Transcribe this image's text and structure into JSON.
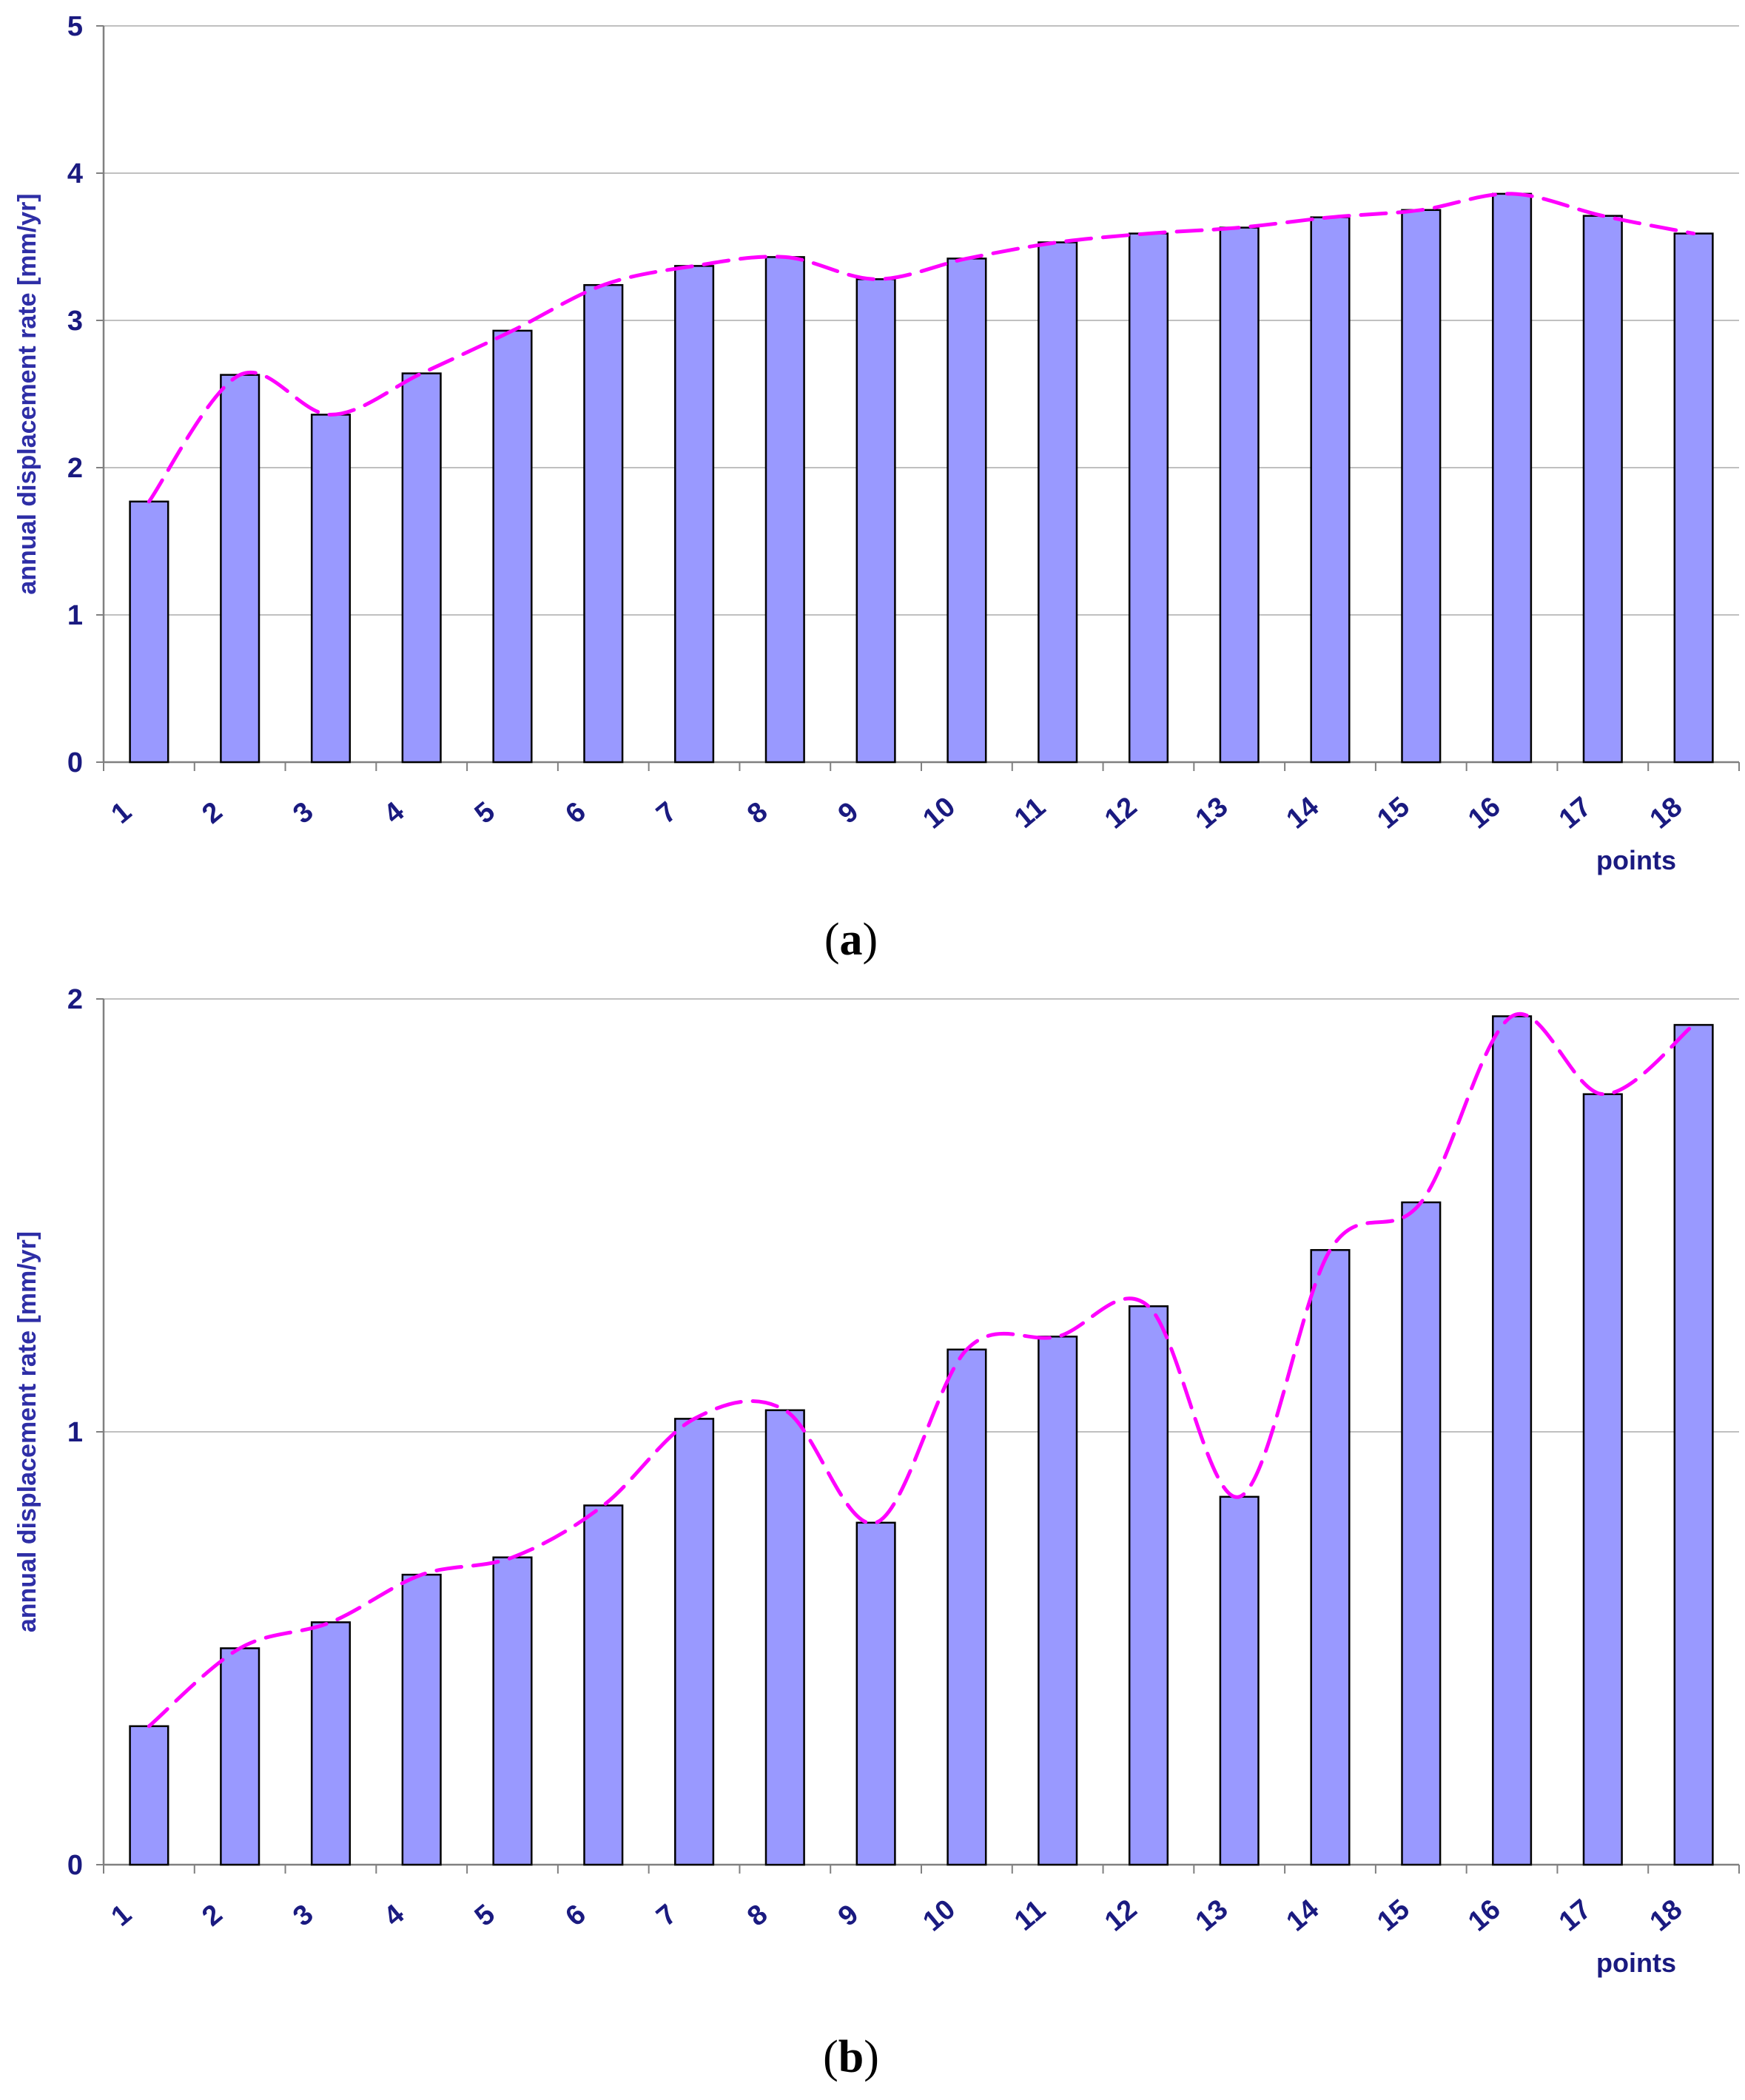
{
  "chart_data": [
    {
      "type": "bar",
      "caption": {
        "open": "(",
        "letter": "a",
        "close": ")"
      },
      "categories": [
        "1",
        "2",
        "3",
        "4",
        "5",
        "6",
        "7",
        "8",
        "9",
        "10",
        "11",
        "12",
        "13",
        "14",
        "15",
        "16",
        "17",
        "18"
      ],
      "values": [
        1.77,
        2.63,
        2.36,
        2.64,
        2.93,
        3.24,
        3.37,
        3.43,
        3.28,
        3.42,
        3.53,
        3.59,
        3.63,
        3.7,
        3.75,
        3.86,
        3.71,
        3.59
      ],
      "ylabel": "annual displacement rate [mm/yr]",
      "xlabel": "points",
      "ylim": [
        0,
        5
      ],
      "yticks": [
        "0",
        "1",
        "2",
        "3",
        "4",
        "5"
      ],
      "grid": true,
      "trendline": "dashed smooth curve"
    },
    {
      "type": "bar",
      "caption": {
        "open": "(",
        "letter": "b",
        "close": ")"
      },
      "categories": [
        "1",
        "2",
        "3",
        "4",
        "5",
        "6",
        "7",
        "8",
        "9",
        "10",
        "11",
        "12",
        "13",
        "14",
        "15",
        "16",
        "17",
        "18"
      ],
      "values": [
        0.32,
        0.5,
        0.56,
        0.67,
        0.71,
        0.83,
        1.03,
        1.05,
        0.79,
        1.19,
        1.22,
        1.29,
        0.85,
        1.42,
        1.53,
        1.96,
        1.78,
        1.94
      ],
      "ylabel": "annual displacement rate [mm/yr]",
      "xlabel": "points",
      "ylim": [
        0,
        2
      ],
      "yticks": [
        "0",
        "1",
        "2"
      ],
      "grid": true,
      "trendline": "dashed smooth curve"
    }
  ],
  "colors": {
    "bar_fill": "#9999ff",
    "bar_stroke": "#000000",
    "trendline": "#ff00ff",
    "grid": "#c0c0c0",
    "axis": "#808080",
    "tick_text": "#1a1a80",
    "axis_title_text": "#2e2ea6"
  }
}
